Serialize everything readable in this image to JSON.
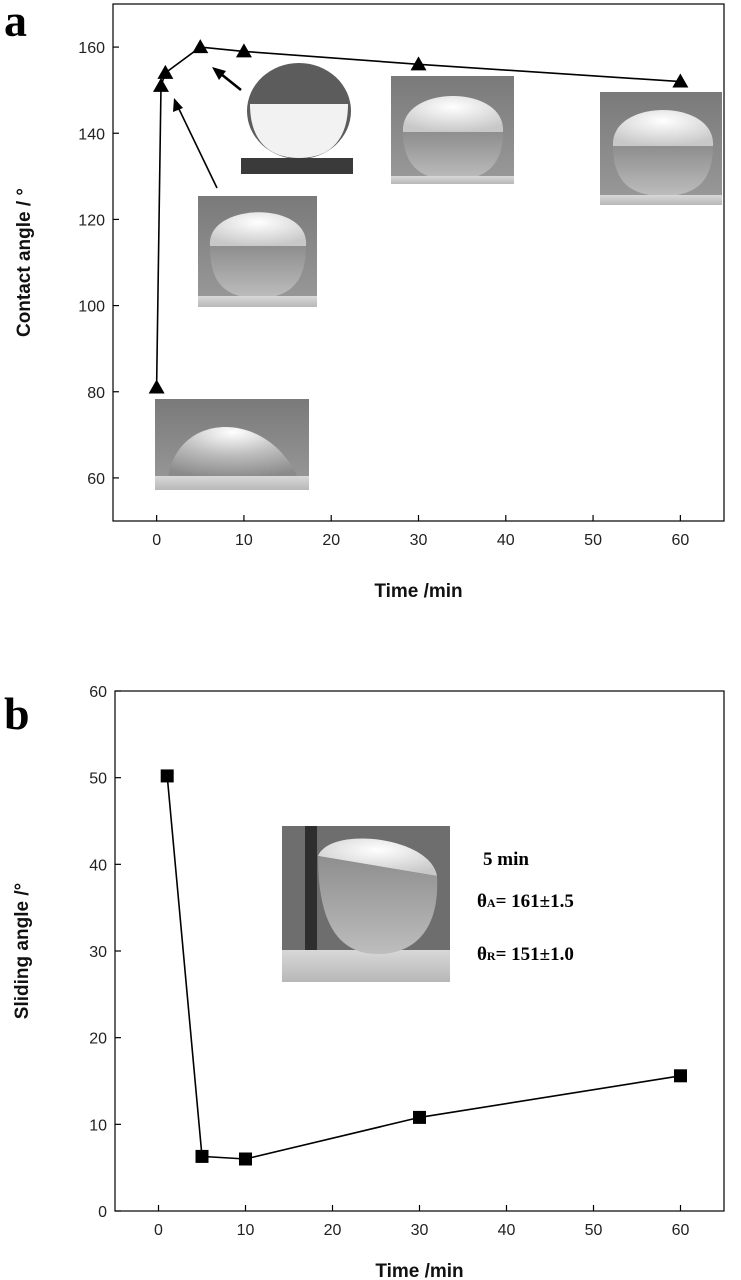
{
  "chart_data": [
    {
      "panel": "a",
      "type": "line",
      "marker": "triangle",
      "xlabel": "Time /min",
      "ylabel": "Contact angle / °",
      "xlim": [
        -5,
        65
      ],
      "ylim": [
        50,
        170
      ],
      "xticks": [
        0,
        10,
        20,
        30,
        40,
        50,
        60
      ],
      "yticks": [
        60,
        80,
        100,
        120,
        140,
        160
      ],
      "grid": false,
      "x": [
        0,
        0.5,
        1,
        5,
        10,
        30,
        60
      ],
      "y": [
        81,
        151,
        154,
        160,
        159,
        156,
        152
      ],
      "insets": [
        {
          "name": "droplet-photo-0min",
          "at_x": 0,
          "at_y": 81
        },
        {
          "name": "droplet-photo-1min",
          "at_x": 1,
          "at_y": 151
        },
        {
          "name": "droplet-photo-5min",
          "at_x": 5,
          "at_y": 160
        },
        {
          "name": "droplet-photo-30min",
          "at_x": 30,
          "at_y": 156
        },
        {
          "name": "droplet-photo-60min",
          "at_x": 60,
          "at_y": 152
        }
      ]
    },
    {
      "panel": "b",
      "type": "line",
      "marker": "square",
      "xlabel": "Time /min",
      "ylabel": "Sliding angle /°",
      "xlim": [
        -5,
        65
      ],
      "ylim": [
        0,
        60
      ],
      "xticks": [
        0,
        10,
        20,
        30,
        40,
        50,
        60
      ],
      "yticks": [
        0,
        10,
        20,
        30,
        40,
        50,
        60
      ],
      "grid": false,
      "x": [
        1,
        5,
        10,
        30,
        60
      ],
      "y": [
        50.2,
        6.3,
        6.0,
        10.8,
        15.6
      ],
      "annotation": {
        "line1": "5 min",
        "line2_prefix": "θ",
        "line2_sub": "A",
        "line2_value": "= 161±1.5",
        "line3_prefix": "θ",
        "line3_sub": "R",
        "line3_value": "= 151±1.0"
      }
    }
  ],
  "labels": {
    "panel_a": "a",
    "panel_b": "b"
  }
}
